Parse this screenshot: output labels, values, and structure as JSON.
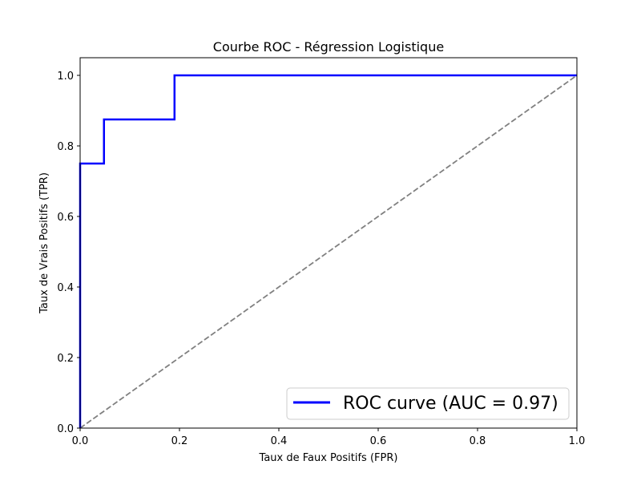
{
  "chart_data": {
    "type": "line",
    "title": "Courbe ROC - Régression Logistique",
    "xlabel": "Taux de Faux Positifs (FPR)",
    "ylabel": "Taux de Vrais Positifs (TPR)",
    "xlim": [
      0.0,
      1.0
    ],
    "ylim": [
      0.0,
      1.05
    ],
    "xticks": [
      "0.0",
      "0.2",
      "0.4",
      "0.6",
      "0.8",
      "1.0"
    ],
    "yticks": [
      "0.0",
      "0.2",
      "0.4",
      "0.6",
      "0.8",
      "1.0"
    ],
    "grid": false,
    "legend_position": "lower-right",
    "series": [
      {
        "name": "ROC curve (AUC = 0.97)",
        "color": "#0000ff",
        "style": "solid",
        "x": [
          0.0,
          0.0,
          0.0,
          0.048,
          0.048,
          0.19,
          0.19,
          1.0
        ],
        "y": [
          0.0,
          0.75,
          0.75,
          0.75,
          0.875,
          0.875,
          1.0,
          1.0
        ]
      },
      {
        "color": "#808080",
        "style": "dashed",
        "x": [
          0.0,
          1.0
        ],
        "y": [
          0.0,
          1.0
        ]
      }
    ]
  }
}
